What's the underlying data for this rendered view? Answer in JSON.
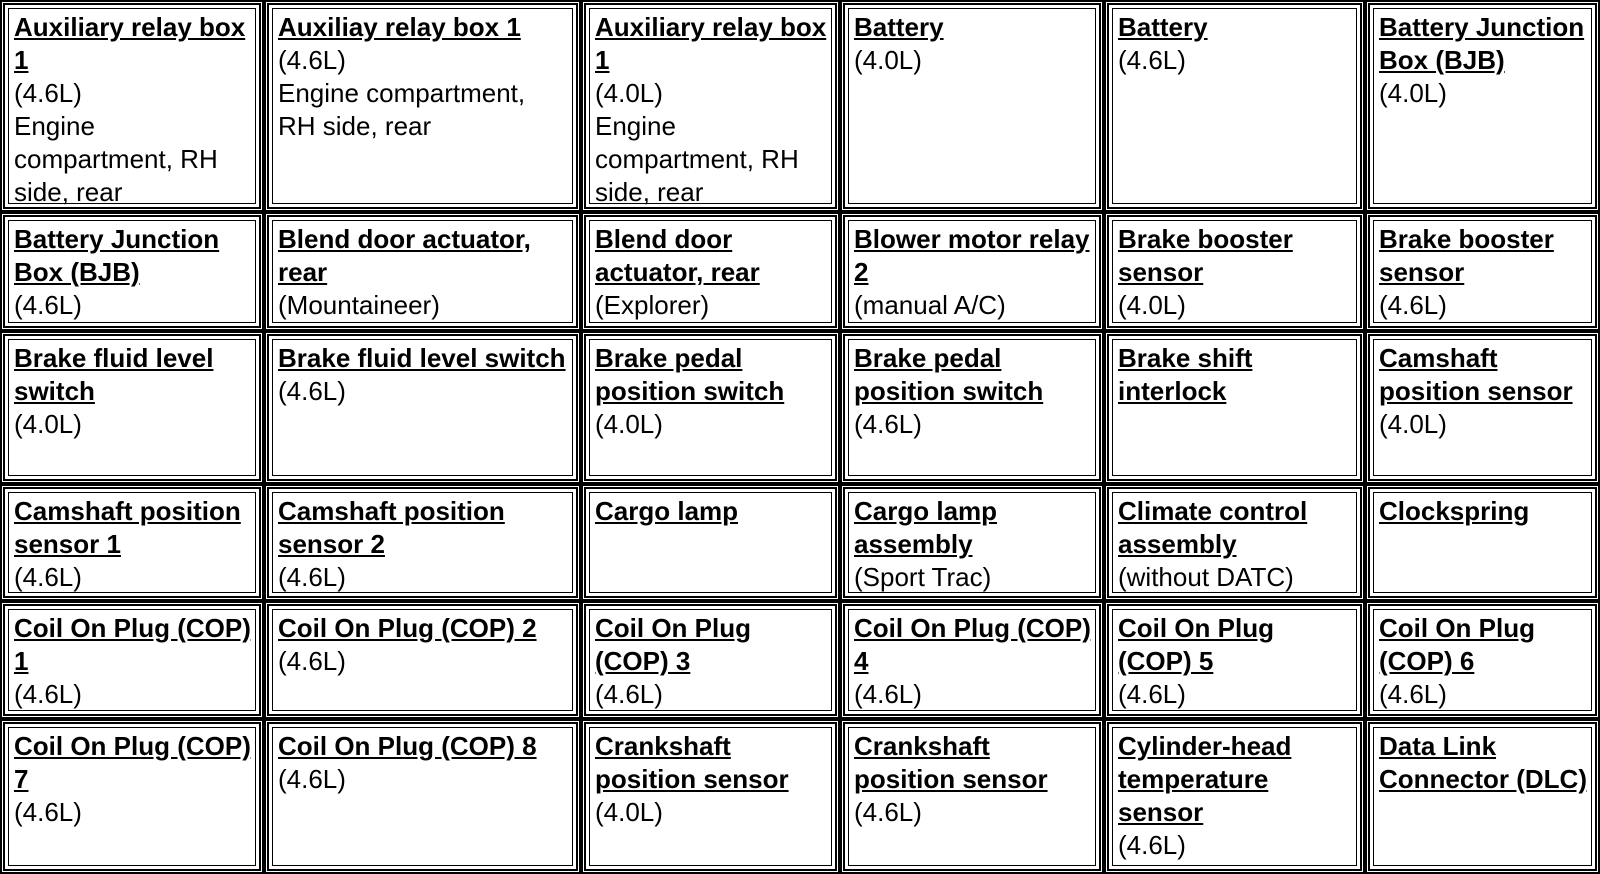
{
  "rows": [
    [
      {
        "title": "Auxiliary relay box 1",
        "lines": [
          "(4.6L)",
          "Engine compartment, RH side, rear"
        ]
      },
      {
        "title": "Auxiliay relay box 1",
        "lines": [
          "(4.6L)",
          "Engine compartment, RH side, rear"
        ]
      },
      {
        "title": "Auxiliary relay box 1",
        "lines": [
          "(4.0L)",
          "Engine compartment, RH side, rear"
        ]
      },
      {
        "title": "Battery",
        "lines": [
          "(4.0L)"
        ]
      },
      {
        "title": "Battery",
        "lines": [
          "(4.6L)"
        ]
      },
      {
        "title": "Battery Junction Box (BJB)",
        "lines": [
          "(4.0L)"
        ]
      }
    ],
    [
      {
        "title": "Battery Junction Box (BJB)",
        "lines": [
          "(4.6L)"
        ]
      },
      {
        "title": "Blend door actuator, rear",
        "lines": [
          "(Mountaineer)"
        ]
      },
      {
        "title": "Blend door actuator, rear",
        "lines": [
          "(Explorer)"
        ]
      },
      {
        "title": "Blower motor relay 2",
        "lines": [
          "(manual A/C)"
        ]
      },
      {
        "title": "Brake booster sensor",
        "lines": [
          "(4.0L)"
        ]
      },
      {
        "title": "Brake booster sensor",
        "lines": [
          "(4.6L)"
        ]
      }
    ],
    [
      {
        "title": "Brake fluid level switch",
        "lines": [
          "(4.0L)"
        ]
      },
      {
        "title": "Brake fluid level switch",
        "lines": [
          "(4.6L)"
        ]
      },
      {
        "title": "Brake pedal position switch",
        "lines": [
          "(4.0L)"
        ]
      },
      {
        "title": "Brake pedal position switch",
        "lines": [
          "(4.6L)"
        ]
      },
      {
        "title": "Brake shift interlock",
        "lines": []
      },
      {
        "title": "Camshaft position sensor",
        "lines": [
          "(4.0L)"
        ]
      }
    ],
    [
      {
        "title": "Camshaft position sensor 1",
        "lines": [
          "(4.6L)"
        ]
      },
      {
        "title": "Camshaft position sensor 2",
        "lines": [
          "(4.6L)"
        ]
      },
      {
        "title": "Cargo lamp",
        "lines": []
      },
      {
        "title": "Cargo lamp assembly",
        "lines": [
          "(Sport Trac)"
        ]
      },
      {
        "title": "Climate control assembly",
        "lines": [
          "(without DATC)"
        ]
      },
      {
        "title": "Clockspring",
        "lines": []
      }
    ],
    [
      {
        "title": "Coil On Plug (COP) 1",
        "lines": [
          "(4.6L)"
        ]
      },
      {
        "title": "Coil On Plug (COP) 2",
        "lines": [
          "(4.6L)"
        ]
      },
      {
        "title": "Coil On Plug (COP) 3",
        "lines": [
          "(4.6L)"
        ]
      },
      {
        "title": "Coil On Plug (COP) 4",
        "lines": [
          "(4.6L)"
        ]
      },
      {
        "title": "Coil On Plug (COP) 5",
        "lines": [
          "(4.6L)"
        ]
      },
      {
        "title": "Coil On Plug (COP) 6",
        "lines": [
          "(4.6L)"
        ]
      }
    ],
    [
      {
        "title": "Coil On Plug (COP) 7",
        "lines": [
          "(4.6L)"
        ]
      },
      {
        "title": "Coil On Plug (COP) 8",
        "lines": [
          "(4.6L)"
        ]
      },
      {
        "title": "Crankshaft position sensor",
        "lines": [
          "(4.0L)"
        ]
      },
      {
        "title": "Crankshaft position sensor",
        "lines": [
          "(4.6L)"
        ]
      },
      {
        "title": "Cylinder-head temperature sensor",
        "lines": [
          "(4.6L)"
        ]
      },
      {
        "title": "Data Link Connector (DLC)",
        "lines": []
      }
    ]
  ]
}
